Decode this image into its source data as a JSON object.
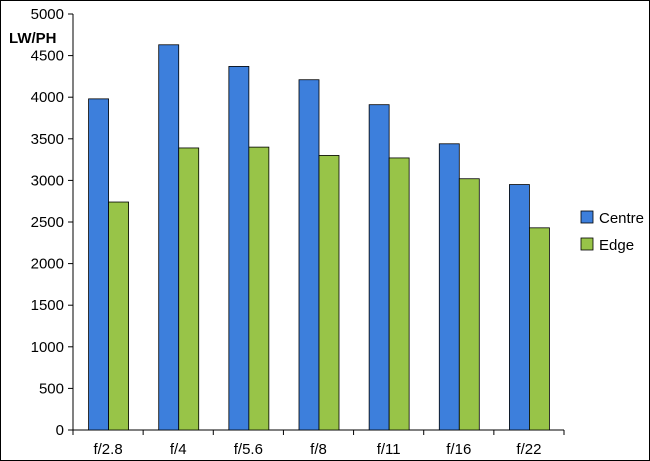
{
  "chart_data": {
    "type": "bar",
    "title": "",
    "xlabel": "",
    "ylabel": "LW/PH",
    "categories": [
      "f/2.8",
      "f/4",
      "f/5.6",
      "f/8",
      "f/11",
      "f/16",
      "f/22"
    ],
    "series": [
      {
        "name": "Centre",
        "color": "#3d7fdc",
        "values": [
          3980,
          4630,
          4370,
          4210,
          3910,
          3440,
          2950
        ]
      },
      {
        "name": "Edge",
        "color": "#98c448",
        "values": [
          2740,
          3390,
          3400,
          3300,
          3270,
          3020,
          2430
        ]
      }
    ],
    "ylim": [
      0,
      5000
    ],
    "yticks": [
      0,
      500,
      1000,
      1500,
      2000,
      2500,
      3000,
      3500,
      4000,
      4500,
      5000
    ],
    "grid": false,
    "legend_position": "right"
  }
}
